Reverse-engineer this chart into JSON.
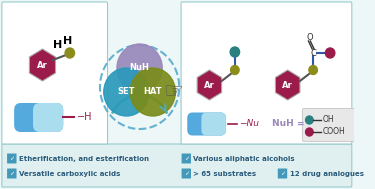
{
  "bg_color": "#eef7f7",
  "bottom_bg": "#e0f0f0",
  "crimson": "#9b1b4b",
  "olive": "#8b8c1a",
  "teal": "#2a8080",
  "set_color": "#2a99bb",
  "hat_color": "#7a8c1a",
  "nuh_color": "#9988bb",
  "ring_color": "#55aacc",
  "arrow_color": "#55aaaa",
  "check_color": "#4499bb",
  "label_color": "#2a5a7a",
  "pill_left": "#55aadd",
  "pill_right": "#aaddee",
  "bond_blue": "#3355aa",
  "oh_color": "#2a8080",
  "cooh_color": "#9b1b4b",
  "hex_edge": "#888888",
  "checkmarks": [
    [
      8,
      155,
      "Etherification, and esterification"
    ],
    [
      8,
      170,
      "Versatile carboxylic acids"
    ],
    [
      193,
      155,
      "Various aliphatic alcohols"
    ],
    [
      193,
      170,
      "> 65 substrates"
    ],
    [
      295,
      170,
      "12 drug analogues"
    ]
  ]
}
